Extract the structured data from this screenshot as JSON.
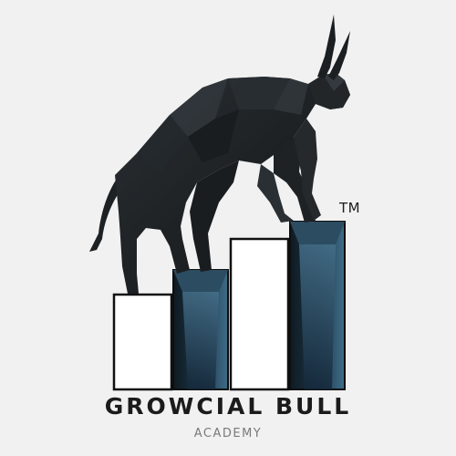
{
  "logo": {
    "icon": "bull-on-bar-chart-icon",
    "trademark": "TM",
    "name": "GROWCIAL BULL",
    "subtitle": "ACADEMY"
  },
  "colors": {
    "background": "#f1f1f1",
    "bull": "#1f2326",
    "bar_dark": "#15232e",
    "bar_accent": "#3e6a85",
    "bar_outline": "#111111",
    "text_primary": "#1b1b1b",
    "text_secondary": "#7a7a7a"
  }
}
